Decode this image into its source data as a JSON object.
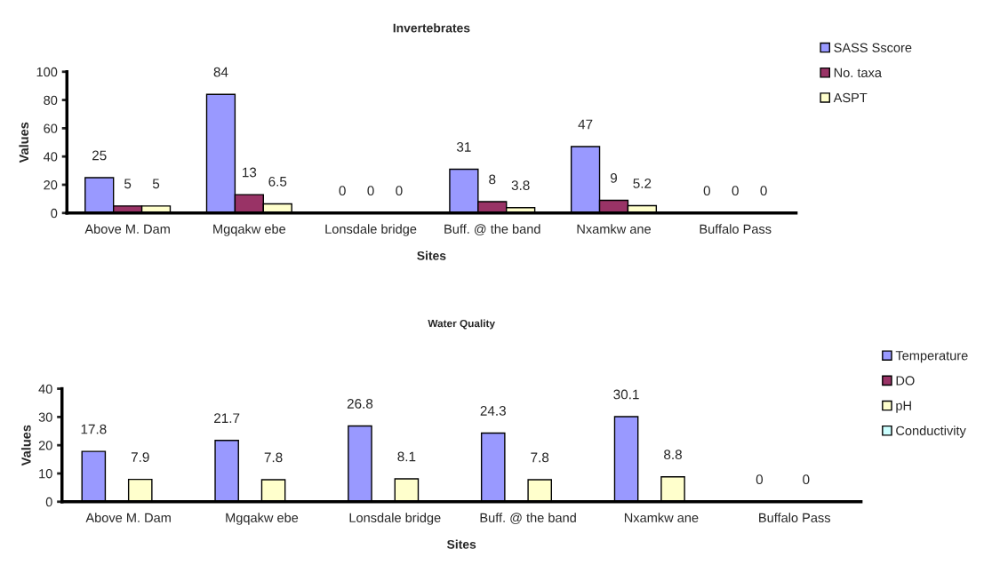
{
  "chart_data": [
    {
      "type": "bar",
      "title": "Invertebrates",
      "xlabel": "Sites",
      "ylabel": "Values",
      "categories": [
        "Above M. Dam",
        "Mgqakw ebe",
        "Lonsdale bridge",
        "Buff. @ the band",
        "Nxamkw ane",
        "Buffalo Pass"
      ],
      "series": [
        {
          "name": "SASS Sscore",
          "color": "#9999ff",
          "values": [
            25,
            84,
            0,
            31,
            47,
            0
          ]
        },
        {
          "name": "No. taxa",
          "color": "#993366",
          "values": [
            5,
            13,
            0,
            8,
            9,
            0
          ]
        },
        {
          "name": "ASPT",
          "color": "#ffffcc",
          "values": [
            5,
            6.5,
            0,
            3.8,
            5.2,
            0
          ]
        }
      ],
      "ylim": [
        0,
        100
      ],
      "yticks": [
        0,
        20,
        40,
        60,
        80,
        100
      ],
      "grid": false,
      "legend": "top right",
      "data_labels": true
    },
    {
      "type": "bar",
      "title": "Water Quality",
      "xlabel": "Sites",
      "ylabel": "Values",
      "categories": [
        "Above M. Dam",
        "Mgqakw ebe",
        "Lonsdale bridge",
        "Buff. @ the band",
        "Nxamkw ane",
        "Buffalo Pass"
      ],
      "series": [
        {
          "name": "Temperature",
          "color": "#9999ff",
          "values": [
            17.8,
            21.7,
            26.8,
            24.3,
            30.1,
            0
          ],
          "value_labels": [
            "17.8",
            "21.7",
            "26.8",
            "24.3",
            "30.1",
            "0"
          ]
        },
        {
          "name": "DO",
          "color": "#993366",
          "values": [
            null,
            null,
            null,
            null,
            null,
            null
          ],
          "value_labels": [
            null,
            null,
            null,
            null,
            null,
            null
          ]
        },
        {
          "name": "pH",
          "color": "#ffffcc",
          "values": [
            7.9,
            7.8,
            8.1,
            7.8,
            8.8,
            0
          ],
          "value_labels": [
            "7.9",
            "7.8",
            "8.1",
            "7.8",
            "8.8",
            "0"
          ]
        },
        {
          "name": "Conductivity",
          "color": "#ccffff",
          "values": [
            null,
            null,
            null,
            null,
            null,
            null
          ],
          "value_labels": [
            null,
            null,
            null,
            null,
            null,
            null
          ]
        }
      ],
      "ylim": [
        0,
        40
      ],
      "yticks": [
        0,
        10,
        20,
        30,
        40
      ],
      "grid": false,
      "legend": "top right"
    }
  ]
}
